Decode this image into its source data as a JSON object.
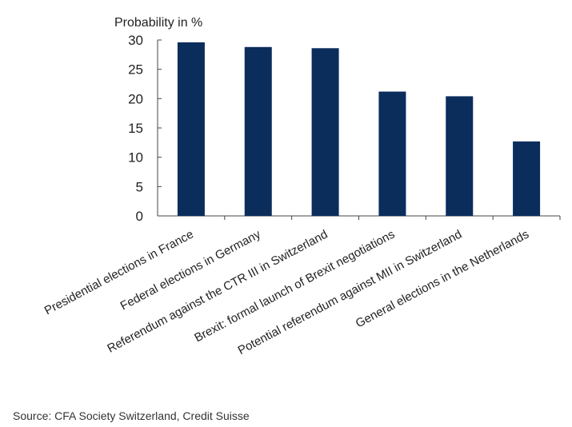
{
  "chart_data": {
    "type": "bar",
    "ylabel": "Probability in %",
    "xlabel": "",
    "ylim": [
      0,
      30
    ],
    "yticks": [
      0,
      5,
      10,
      15,
      20,
      25,
      30
    ],
    "grid": false,
    "bar_color": "#0b2d5c",
    "categories": [
      "Presidential elections in France",
      "Federal elections in Germany",
      "Referendum against the CTR III in Switzerland",
      "Brexit: formal launch of Brexit negotiations",
      "Potential referendum against MII in Switzerland",
      "General elections in the Netherlands"
    ],
    "values": [
      29.6,
      28.8,
      28.6,
      21.2,
      20.4,
      12.7
    ]
  },
  "source": "Source: CFA Society Switzerland, Credit Suisse"
}
